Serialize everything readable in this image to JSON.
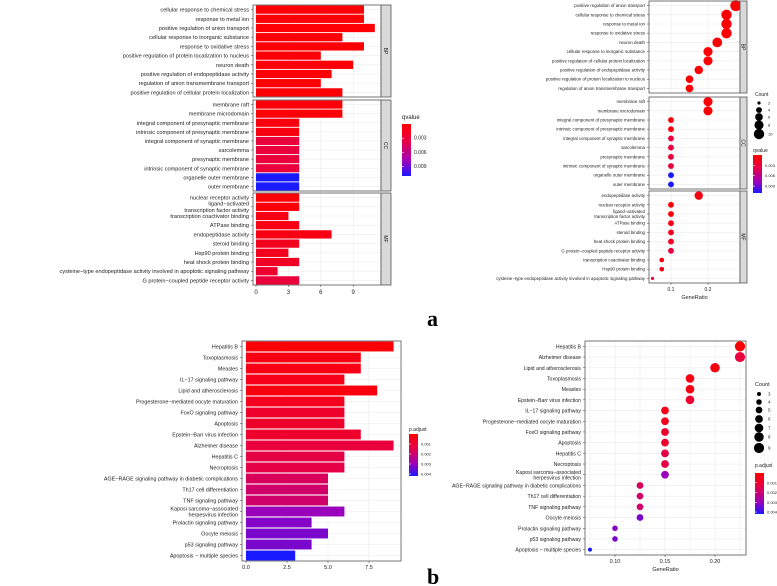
{
  "figure": {
    "panel_labels": [
      "a",
      "b"
    ]
  },
  "chart_data": [
    {
      "id": "a_bar",
      "type": "bar",
      "orientation": "horizontal",
      "xlabel": "",
      "xticks": [
        0,
        3,
        6,
        9
      ],
      "xlim": [
        0,
        11.5
      ],
      "color_legend": {
        "title": "qvalue",
        "ticks": [
          "0.003",
          "0.006",
          "0.009"
        ],
        "range": [
          0,
          0.011
        ]
      },
      "facets": [
        {
          "name": "BP",
          "rows": [
            {
              "term": "cellular response to chemical stress",
              "count": 10,
              "q": 0.0002
            },
            {
              "term": "response to metal ion",
              "count": 10,
              "q": 0.0002
            },
            {
              "term": "positive regulation of anion transport",
              "count": 11,
              "q": 0.0002
            },
            {
              "term": "cellular response to inorganic substance",
              "count": 8,
              "q": 0.0002
            },
            {
              "term": "response to oxidative stress",
              "count": 10,
              "q": 0.0002
            },
            {
              "term": "positive regulation of protein localization to nucleus",
              "count": 6,
              "q": 0.0003
            },
            {
              "term": "neuron death",
              "count": 9,
              "q": 0.0003
            },
            {
              "term": "positive regulation of endopeptidase activity",
              "count": 7,
              "q": 0.0003
            },
            {
              "term": "regulation of anion transmembrane transport",
              "count": 6,
              "q": 0.0003
            },
            {
              "term": "positive regulation of cellular protein localization",
              "count": 8,
              "q": 0.0003
            }
          ]
        },
        {
          "name": "CC",
          "rows": [
            {
              "term": "membrane raft",
              "count": 8,
              "q": 0.0004
            },
            {
              "term": "membrane microdomain",
              "count": 8,
              "q": 0.0004
            },
            {
              "term": "integral component of presynaptic membrane",
              "count": 4,
              "q": 0.0008
            },
            {
              "term": "intrinsic component of presynaptic membrane",
              "count": 4,
              "q": 0.0008
            },
            {
              "term": "integral component of synaptic membrane",
              "count": 4,
              "q": 0.003
            },
            {
              "term": "sarcolemma",
              "count": 4,
              "q": 0.003
            },
            {
              "term": "presynaptic membrane",
              "count": 4,
              "q": 0.003
            },
            {
              "term": "intrinsic component of synaptic membrane",
              "count": 4,
              "q": 0.003
            },
            {
              "term": "organelle outer membrane",
              "count": 4,
              "q": 0.011
            },
            {
              "term": "outer membrane",
              "count": 4,
              "q": 0.011
            }
          ]
        },
        {
          "name": "MF",
          "rows": [
            {
              "term": "nuclear receptor activity",
              "count": 4,
              "q": 0.0004
            },
            {
              "term": "ligand−activated\ntranscription factor activity",
              "count": 4,
              "q": 0.0004
            },
            {
              "term": "transcription coactivator binding",
              "count": 3,
              "q": 0.001
            },
            {
              "term": "ATPase binding",
              "count": 4,
              "q": 0.001
            },
            {
              "term": "endopeptidase activity",
              "count": 7,
              "q": 0.001
            },
            {
              "term": "steroid binding",
              "count": 4,
              "q": 0.0016
            },
            {
              "term": "Hsp90 protein binding",
              "count": 3,
              "q": 0.0016
            },
            {
              "term": "heat shock protein binding",
              "count": 4,
              "q": 0.002
            },
            {
              "term": "cysteine−type endopeptidase activity involved in apoptotic signaling pathway",
              "count": 2,
              "q": 0.0025
            },
            {
              "term": "G protein−coupled peptide receptor activity",
              "count": 4,
              "q": 0.003
            }
          ]
        }
      ]
    },
    {
      "id": "a_dot",
      "type": "scatter",
      "xlabel": "GeneRatio",
      "xticks": [
        "0.1",
        "0.2"
      ],
      "size_legend": {
        "title": "Count",
        "values": [
          2,
          4,
          6,
          8,
          10
        ]
      },
      "color_legend": {
        "title": "qvalue",
        "ticks": [
          "0.003",
          "0.006",
          "0.009"
        ],
        "range": [
          0,
          0.011
        ]
      },
      "facets": [
        {
          "name": "BP",
          "rows": [
            {
              "term": "positive regulation of anion transport",
              "ratio": 0.275,
              "count": 11,
              "q": 0.0002
            },
            {
              "term": "cellular response to chemical stress",
              "ratio": 0.25,
              "count": 10,
              "q": 0.0002
            },
            {
              "term": "response to metal ion",
              "ratio": 0.25,
              "count": 10,
              "q": 0.0002
            },
            {
              "term": "response to oxidative stress",
              "ratio": 0.25,
              "count": 10,
              "q": 0.0002
            },
            {
              "term": "neuron death",
              "ratio": 0.225,
              "count": 9,
              "q": 0.0003
            },
            {
              "term": "cellular response to inorganic substance",
              "ratio": 0.2,
              "count": 8,
              "q": 0.0002
            },
            {
              "term": "positive regulation of cellular protein localization",
              "ratio": 0.2,
              "count": 8,
              "q": 0.0003
            },
            {
              "term": "positive regulation of endopeptidase activity",
              "ratio": 0.175,
              "count": 7,
              "q": 0.0003
            },
            {
              "term": "positive regulation of protein localization to nucleus",
              "ratio": 0.15,
              "count": 6,
              "q": 0.0003
            },
            {
              "term": "regulation of anion transmembrane transport",
              "ratio": 0.15,
              "count": 6,
              "q": 0.0003
            }
          ]
        },
        {
          "name": "CC",
          "rows": [
            {
              "term": "membrane raft",
              "ratio": 0.2,
              "count": 8,
              "q": 0.0004
            },
            {
              "term": "membrane microdomain",
              "ratio": 0.2,
              "count": 8,
              "q": 0.0004
            },
            {
              "term": "integral component of presynaptic membrane",
              "ratio": 0.1,
              "count": 4,
              "q": 0.0008
            },
            {
              "term": "intrinsic component of presynaptic membrane",
              "ratio": 0.1,
              "count": 4,
              "q": 0.0008
            },
            {
              "term": "integral component of synaptic membrane",
              "ratio": 0.1,
              "count": 4,
              "q": 0.003
            },
            {
              "term": "sarcolemma",
              "ratio": 0.1,
              "count": 4,
              "q": 0.003
            },
            {
              "term": "presynaptic membrane",
              "ratio": 0.1,
              "count": 4,
              "q": 0.003
            },
            {
              "term": "intrinsic component of synaptic membrane",
              "ratio": 0.1,
              "count": 4,
              "q": 0.003
            },
            {
              "term": "organelle outer membrane",
              "ratio": 0.1,
              "count": 4,
              "q": 0.011
            },
            {
              "term": "outer membrane",
              "ratio": 0.1,
              "count": 4,
              "q": 0.011
            }
          ]
        },
        {
          "name": "MF",
          "rows": [
            {
              "term": "endopeptidase activity",
              "ratio": 0.175,
              "count": 7,
              "q": 0.001
            },
            {
              "term": "nuclear receptor activity",
              "ratio": 0.1,
              "count": 4,
              "q": 0.0004
            },
            {
              "term": "ligand−activated\ntranscription factor activity",
              "ratio": 0.1,
              "count": 4,
              "q": 0.0004
            },
            {
              "term": "ATPase binding",
              "ratio": 0.1,
              "count": 4,
              "q": 0.001
            },
            {
              "term": "steroid binding",
              "ratio": 0.1,
              "count": 4,
              "q": 0.0016
            },
            {
              "term": "heat shock protein binding",
              "ratio": 0.1,
              "count": 4,
              "q": 0.002
            },
            {
              "term": "G protein−coupled peptide receptor activity",
              "ratio": 0.1,
              "count": 4,
              "q": 0.003
            },
            {
              "term": "transcription coactivator binding",
              "ratio": 0.075,
              "count": 3,
              "q": 0.001
            },
            {
              "term": "Hsp90 protein binding",
              "ratio": 0.075,
              "count": 3,
              "q": 0.0016
            },
            {
              "term": "cysteine−type endopeptidase activity involved in apoptotic signaling pathway",
              "ratio": 0.05,
              "count": 2,
              "q": 0.0025
            }
          ]
        }
      ]
    },
    {
      "id": "b_bar",
      "type": "bar",
      "orientation": "horizontal",
      "xlabel": "",
      "xticks": [
        "0.0",
        "2.5",
        "5.0",
        "7.5"
      ],
      "xlim": [
        0,
        9.2
      ],
      "color_legend": {
        "title": "p.adjust",
        "ticks": [
          "0.001",
          "0.002",
          "0.003",
          "0.004"
        ],
        "range": [
          0,
          0.0042
        ]
      },
      "rows": [
        {
          "term": "Hepatitis B",
          "count": 9,
          "p": 0.0001
        },
        {
          "term": "Toxoplasmosis",
          "count": 7,
          "p": 0.0004
        },
        {
          "term": "Measles",
          "count": 7,
          "p": 0.0004
        },
        {
          "term": "IL−17 signaling pathway",
          "count": 6,
          "p": 0.0005
        },
        {
          "term": "Lipid and atherosclerosis",
          "count": 8,
          "p": 0.0003
        },
        {
          "term": "Progesterone−mediated oocyte maturation",
          "count": 6,
          "p": 0.0006
        },
        {
          "term": "FoxO signaling pathway",
          "count": 6,
          "p": 0.0009
        },
        {
          "term": "Apoptosis",
          "count": 6,
          "p": 0.0009
        },
        {
          "term": "Epstein−Barr virus infection",
          "count": 7,
          "p": 0.0009
        },
        {
          "term": "Alzheimer disease",
          "count": 9,
          "p": 0.0012
        },
        {
          "term": "Hepatitis C",
          "count": 6,
          "p": 0.0014
        },
        {
          "term": "Necroptosis",
          "count": 6,
          "p": 0.0014
        },
        {
          "term": "AGE−RAGE signaling pathway in diabetic complications",
          "count": 5,
          "p": 0.0017
        },
        {
          "term": "Th17 cell differentiation",
          "count": 5,
          "p": 0.0019
        },
        {
          "term": "TNF signaling pathway",
          "count": 5,
          "p": 0.0019
        },
        {
          "term": "Kaposi sarcoma−associated\nherpesvirus infection",
          "count": 6,
          "p": 0.003
        },
        {
          "term": "Prolactin signaling pathway",
          "count": 4,
          "p": 0.0032
        },
        {
          "term": "Oocyte meiosis",
          "count": 5,
          "p": 0.0033
        },
        {
          "term": "p53 signaling pathway",
          "count": 4,
          "p": 0.0033
        },
        {
          "term": "Apoptosis − multiple species",
          "count": 3,
          "p": 0.0042
        }
      ]
    },
    {
      "id": "b_dot",
      "type": "scatter",
      "xlabel": "GeneRatio",
      "xticks": [
        "0.10",
        "0.15",
        "0.20"
      ],
      "size_legend": {
        "title": "Count",
        "values": [
          3,
          4,
          5,
          6,
          7,
          8,
          9
        ]
      },
      "color_legend": {
        "title": "p.adjust",
        "ticks": [
          "0.001",
          "0.002",
          "0.003",
          "0.004"
        ],
        "range": [
          0,
          0.0042
        ]
      },
      "rows": [
        {
          "term": "Hepatitis B",
          "ratio": 0.225,
          "count": 9,
          "p": 0.0001
        },
        {
          "term": "Alzheimer disease",
          "ratio": 0.225,
          "count": 9,
          "p": 0.0012
        },
        {
          "term": "Lipid and atherosclerosis",
          "ratio": 0.2,
          "count": 8,
          "p": 0.0003
        },
        {
          "term": "Toxoplasmosis",
          "ratio": 0.175,
          "count": 7,
          "p": 0.0004
        },
        {
          "term": "Measles",
          "ratio": 0.175,
          "count": 7,
          "p": 0.0004
        },
        {
          "term": "Epstein−Barr virus infection",
          "ratio": 0.175,
          "count": 7,
          "p": 0.0009
        },
        {
          "term": "IL−17 signaling pathway",
          "ratio": 0.15,
          "count": 6,
          "p": 0.0005
        },
        {
          "term": "Progesterone−mediated oocyte maturation",
          "ratio": 0.15,
          "count": 6,
          "p": 0.0006
        },
        {
          "term": "FoxO signaling pathway",
          "ratio": 0.15,
          "count": 6,
          "p": 0.0009
        },
        {
          "term": "Apoptosis",
          "ratio": 0.15,
          "count": 6,
          "p": 0.0009
        },
        {
          "term": "Hepatitis C",
          "ratio": 0.15,
          "count": 6,
          "p": 0.0014
        },
        {
          "term": "Necroptosis",
          "ratio": 0.15,
          "count": 6,
          "p": 0.0014
        },
        {
          "term": "Kaposi sarcoma−associated\nherpesvirus infection",
          "ratio": 0.15,
          "count": 6,
          "p": 0.003
        },
        {
          "term": "AGE−RAGE signaling pathway in diabetic complications",
          "ratio": 0.125,
          "count": 5,
          "p": 0.0017
        },
        {
          "term": "Th17 cell differentiation",
          "ratio": 0.125,
          "count": 5,
          "p": 0.0019
        },
        {
          "term": "TNF signaling pathway",
          "ratio": 0.125,
          "count": 5,
          "p": 0.0019
        },
        {
          "term": "Oocyte meiosis",
          "ratio": 0.125,
          "count": 5,
          "p": 0.0033
        },
        {
          "term": "Prolactin signaling pathway",
          "ratio": 0.1,
          "count": 4,
          "p": 0.0032
        },
        {
          "term": "p53 signaling pathway",
          "ratio": 0.1,
          "count": 4,
          "p": 0.0033
        },
        {
          "term": "Apoptosis − multiple species",
          "ratio": 0.075,
          "count": 3,
          "p": 0.0042
        }
      ]
    }
  ]
}
